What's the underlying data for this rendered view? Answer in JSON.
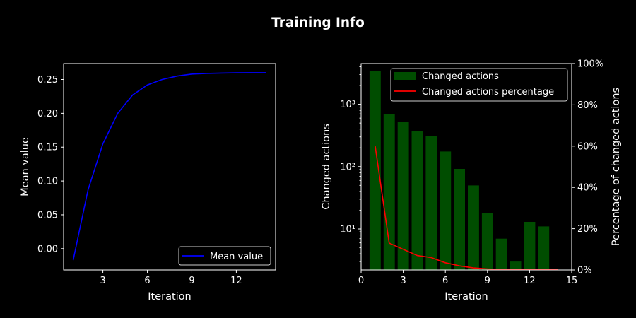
{
  "figure": {
    "title": "Training Info",
    "background": "#000000",
    "foreground": "#ffffff"
  },
  "chart_data": [
    {
      "type": "line",
      "xlabel": "Iteration",
      "ylabel": "Mean value",
      "xlim": [
        0.35,
        14.65
      ],
      "ylim": [
        -0.0315,
        0.2735
      ],
      "xticks": [
        3,
        6,
        9,
        12
      ],
      "xtick_labels": [
        "3",
        "6",
        "9",
        "12"
      ],
      "yticks": [
        0.0,
        0.05,
        0.1,
        0.15,
        0.2,
        0.25
      ],
      "ytick_labels": [
        "0.00",
        "0.05",
        "0.10",
        "0.15",
        "0.20",
        "0.25"
      ],
      "legend": {
        "position": "lower-right",
        "entries": [
          "Mean value"
        ]
      },
      "grid": false,
      "series": [
        {
          "name": "Mean value",
          "color": "#0000ff",
          "x": [
            1,
            2,
            3,
            4,
            5,
            6,
            7,
            8,
            9,
            10,
            11,
            12,
            13,
            14
          ],
          "y": [
            -0.017,
            0.087,
            0.155,
            0.2,
            0.227,
            0.242,
            0.25,
            0.255,
            0.258,
            0.259,
            0.2595,
            0.2598,
            0.26,
            0.26
          ]
        }
      ]
    },
    {
      "type": "bar",
      "xlabel": "Iteration",
      "ylabel": "Changed actions",
      "y_scale": "log",
      "xlim": [
        0,
        15
      ],
      "ylim": [
        2.2,
        4500
      ],
      "xticks": [
        0,
        3,
        6,
        9,
        12,
        15
      ],
      "xtick_labels": [
        "0",
        "3",
        "6",
        "9",
        "12",
        "15"
      ],
      "yticks": [
        10,
        100,
        1000
      ],
      "ytick_labels": [
        "10¹",
        "10²",
        "10³"
      ],
      "legend": {
        "position": "top-right",
        "entries": [
          "Changed actions",
          "Changed actions percentage"
        ]
      },
      "grid": false,
      "series": [
        {
          "name": "Changed actions",
          "color": "#004d00",
          "x": [
            1,
            2,
            3,
            4,
            5,
            6,
            7,
            8,
            9,
            10,
            11,
            12,
            13
          ],
          "values": [
            3400,
            700,
            520,
            370,
            310,
            175,
            92,
            50,
            18,
            7,
            3,
            13,
            11
          ]
        }
      ],
      "secondary_axis": {
        "ylabel": "Percentage of changed actions",
        "ylim": [
          0,
          100
        ],
        "yticks": [
          0,
          20,
          40,
          60,
          80,
          100
        ],
        "ytick_labels": [
          "0%",
          "20%",
          "40%",
          "60%",
          "80%",
          "100%"
        ],
        "series": [
          {
            "name": "Changed actions percentage",
            "type": "line",
            "color": "#ff0000",
            "x": [
              1,
              2,
              3,
              4,
              5,
              6,
              7,
              8,
              9,
              10,
              11,
              12,
              13,
              14
            ],
            "y": [
              60,
              13,
              10,
              7,
              6,
              3.5,
              2,
              1,
              0.5,
              0.2,
              0.1,
              0.4,
              0.3,
              0.2
            ]
          }
        ]
      }
    }
  ]
}
